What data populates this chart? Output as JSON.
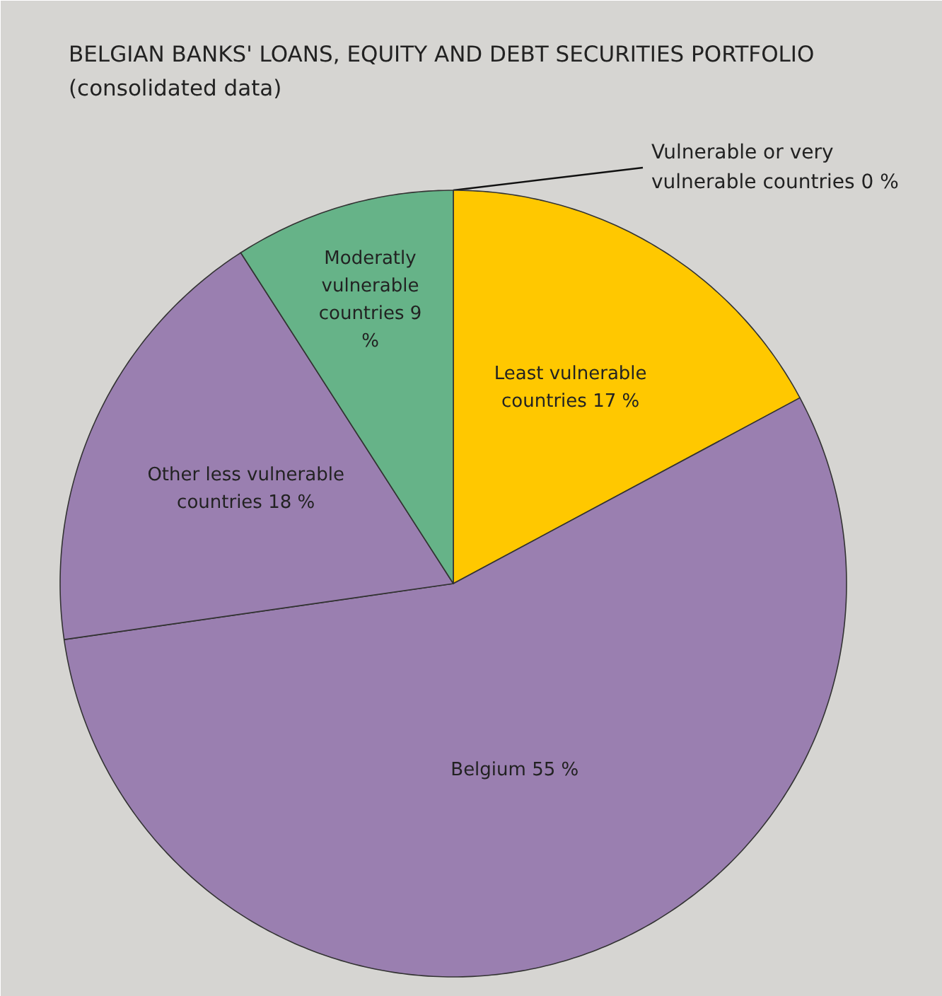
{
  "chart_data": {
    "type": "pie",
    "title": "BELGIAN BANKS' LOANS, EQUITY AND DEBT SECURITIES PORTFOLIO",
    "subtitle": "(consolidated data)",
    "categories": [
      "Vulnerable or very vulnerable countries",
      "Least vulnerable countries",
      "Belgium",
      "Other less vulnerable countries",
      "Moderatly vulnerable countries"
    ],
    "values": [
      0,
      17,
      55,
      18,
      9
    ],
    "value_labels": [
      "0 %",
      "17 %",
      "55 %",
      "18 %",
      "9 %"
    ],
    "colors": [
      "#a03a5e",
      "#ffc800",
      "#9a7fb0",
      "#9a7fb0",
      "#66b388"
    ]
  }
}
